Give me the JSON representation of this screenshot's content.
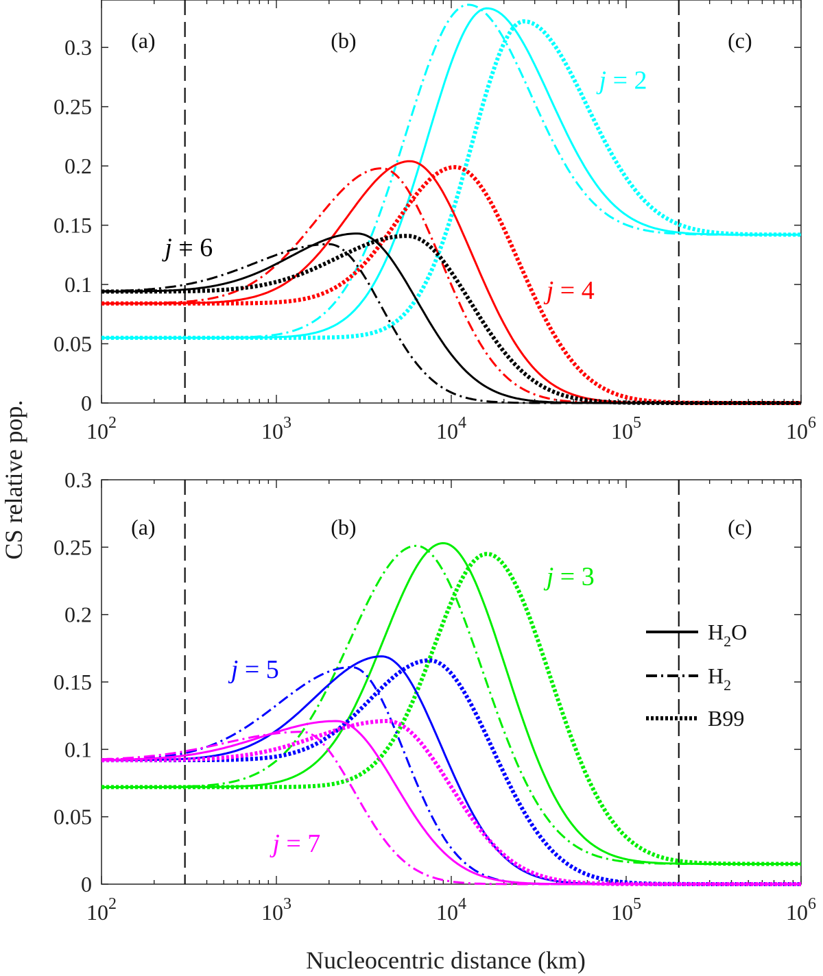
{
  "figure": {
    "ylabel": "CS relative pop.",
    "xlabel": "Nucleocentric distance (km)",
    "xtick_base": "10",
    "xtick_exponents": [
      "2",
      "3",
      "4",
      "5",
      "6"
    ],
    "boundary_lines_km": [
      300,
      200000
    ],
    "regions": [
      "(a)",
      "(b)",
      "(c)"
    ],
    "legend": {
      "solid": {
        "base": "H",
        "sub": "2",
        "tail": "O"
      },
      "dashdot": {
        "base": "H",
        "sub": "2",
        "tail": ""
      },
      "dotted": {
        "base": "B99",
        "sub": "",
        "tail": ""
      }
    }
  },
  "chart_data": [
    {
      "type": "line",
      "panel": "top",
      "xscale": "log",
      "xlim": [
        100,
        1000000
      ],
      "ylim": [
        0,
        0.34
      ],
      "yticks": [
        "0",
        "0.05",
        "0.1",
        "0.15",
        "0.2",
        "0.25",
        "0.3"
      ],
      "xlabel": "",
      "ylabel": "CS relative pop.",
      "series": [
        {
          "name": "j = 2",
          "label_prefix": "j",
          "label_value": " = 2",
          "color": "#00ffff",
          "label_pos": {
            "x": 70000,
            "y": 0.265
          },
          "curves": {
            "H2O": {
              "left": 0.055,
              "right": 0.142,
              "peak_x": 16000,
              "peak_y": 0.333,
              "wl": 0.34,
              "wr": 0.36
            },
            "H2": {
              "left": 0.055,
              "right": 0.142,
              "peak_x": 12500,
              "peak_y": 0.336,
              "wl": 0.36,
              "wr": 0.36
            },
            "B99": {
              "left": 0.055,
              "right": 0.142,
              "peak_x": 26000,
              "peak_y": 0.322,
              "wl": 0.3,
              "wr": 0.36
            }
          }
        },
        {
          "name": "j = 4",
          "label_prefix": "j",
          "label_value": " = 4",
          "color": "#ff0000",
          "label_pos": {
            "x": 35000,
            "y": 0.088
          },
          "curves": {
            "H2O": {
              "left": 0.084,
              "right": 0.0,
              "peak_x": 5800,
              "peak_y": 0.204,
              "wl": 0.36,
              "wr": 0.36
            },
            "H2": {
              "left": 0.084,
              "right": 0.0,
              "peak_x": 4000,
              "peak_y": 0.198,
              "wl": 0.38,
              "wr": 0.34
            },
            "B99": {
              "left": 0.084,
              "right": 0.0,
              "peak_x": 10500,
              "peak_y": 0.199,
              "wl": 0.33,
              "wr": 0.36
            }
          }
        },
        {
          "name": "j = 6",
          "label_prefix": "j",
          "label_value": " = 6",
          "color": "#000000",
          "label_pos": {
            "x": 230,
            "y": 0.124
          },
          "curves": {
            "H2O": {
              "left": 0.094,
              "right": 0.0,
              "peak_x": 2900,
              "peak_y": 0.143,
              "wl": 0.38,
              "wr": 0.34
            },
            "H2": {
              "left": 0.094,
              "right": 0.0,
              "peak_x": 2000,
              "peak_y": 0.134,
              "wl": 0.42,
              "wr": 0.3
            },
            "B99": {
              "left": 0.094,
              "right": 0.0,
              "peak_x": 5600,
              "peak_y": 0.141,
              "wl": 0.4,
              "wr": 0.36
            }
          }
        }
      ]
    },
    {
      "type": "line",
      "panel": "bottom",
      "xscale": "log",
      "xlim": [
        100,
        1000000
      ],
      "ylim": [
        0,
        0.3
      ],
      "yticks": [
        "0",
        "0.05",
        "0.1",
        "0.15",
        "0.2",
        "0.25",
        "0.3"
      ],
      "xlabel": "Nucleocentric distance (km)",
      "ylabel": "",
      "series": [
        {
          "name": "j = 3",
          "label_prefix": "j",
          "label_value": " = 3",
          "color": "#00ee00",
          "label_pos": {
            "x": 35000,
            "y": 0.222
          },
          "curves": {
            "H2O": {
              "left": 0.072,
              "right": 0.015,
              "peak_x": 9000,
              "peak_y": 0.253,
              "wl": 0.34,
              "wr": 0.36
            },
            "H2": {
              "left": 0.072,
              "right": 0.015,
              "peak_x": 6300,
              "peak_y": 0.251,
              "wl": 0.38,
              "wr": 0.38
            },
            "B99": {
              "left": 0.072,
              "right": 0.015,
              "peak_x": 16000,
              "peak_y": 0.245,
              "wl": 0.3,
              "wr": 0.36
            }
          }
        },
        {
          "name": "j = 5",
          "label_prefix": "j",
          "label_value": " = 5",
          "color": "#0000ff",
          "label_pos": {
            "x": 550,
            "y": 0.153
          },
          "curves": {
            "H2O": {
              "left": 0.092,
              "right": 0.0,
              "peak_x": 4000,
              "peak_y": 0.169,
              "wl": 0.38,
              "wr": 0.34
            },
            "H2": {
              "left": 0.092,
              "right": 0.0,
              "peak_x": 2700,
              "peak_y": 0.161,
              "wl": 0.42,
              "wr": 0.3
            },
            "B99": {
              "left": 0.092,
              "right": 0.0,
              "peak_x": 7500,
              "peak_y": 0.166,
              "wl": 0.34,
              "wr": 0.36
            }
          }
        },
        {
          "name": "j = 7",
          "label_prefix": "j",
          "label_value": " = 7",
          "color": "#ff00ff",
          "label_pos": {
            "x": 950,
            "y": 0.024
          },
          "curves": {
            "H2O": {
              "left": 0.092,
              "right": 0.0,
              "peak_x": 2200,
              "peak_y": 0.121,
              "wl": 0.42,
              "wr": 0.34
            },
            "H2": {
              "left": 0.092,
              "right": 0.0,
              "peak_x": 1400,
              "peak_y": 0.113,
              "wl": 0.44,
              "wr": 0.3
            },
            "B99": {
              "left": 0.092,
              "right": 0.0,
              "peak_x": 4300,
              "peak_y": 0.121,
              "wl": 0.4,
              "wr": 0.36
            }
          }
        }
      ]
    }
  ]
}
